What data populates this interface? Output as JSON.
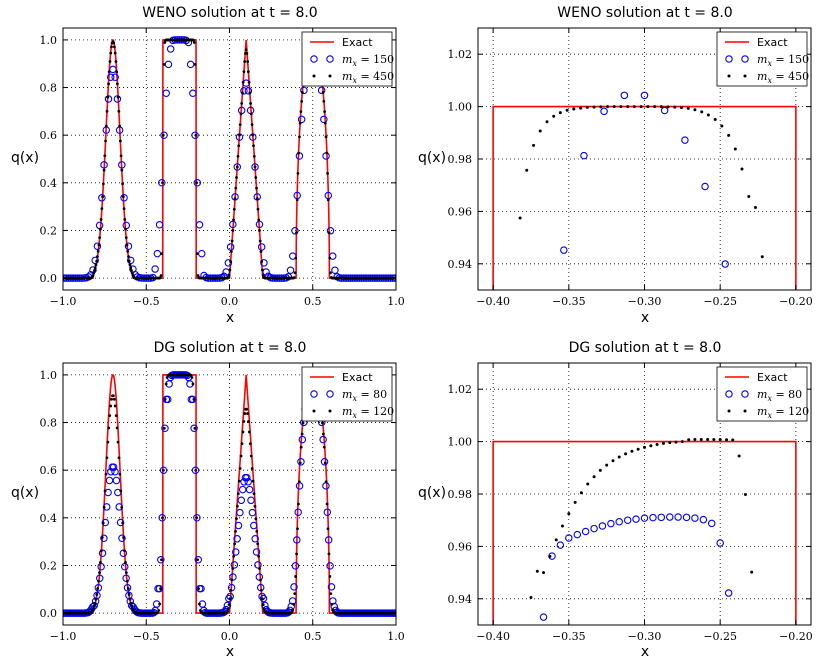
{
  "chart_data": [
    {
      "id": "weno-full",
      "type": "line",
      "title": "WENO solution at t = 8.0",
      "xlabel": "x",
      "ylabel": "q(x)",
      "xlim": [
        -1.0,
        1.0
      ],
      "ylim": [
        -0.05,
        1.05
      ],
      "xticks": [
        -1.0,
        -0.5,
        0.0,
        0.5,
        1.0
      ],
      "xtick_labels": [
        "−1.0",
        "−0.5",
        "0.0",
        "0.5",
        "1.0"
      ],
      "yticks": [
        0.0,
        0.2,
        0.4,
        0.6,
        0.8,
        1.0
      ],
      "ytick_labels": [
        "0.0",
        "0.2",
        "0.4",
        "0.6",
        "0.8",
        "1.0"
      ],
      "grid": true,
      "legend": [
        {
          "label": "Exact",
          "style": "line",
          "color": "#ff0000"
        },
        {
          "label": "m_x = 150",
          "prefix": "m",
          "sub": "x",
          "suffix": " = 150",
          "style": "circle",
          "color": "#0000ff"
        },
        {
          "label": "m_x = 450",
          "prefix": "m",
          "sub": "x",
          "suffix": " = 450",
          "style": "dot",
          "color": "#000000"
        }
      ],
      "legend_position": "top-right",
      "series": [
        {
          "name": "Exact",
          "kind": "exact_full"
        },
        {
          "name": "m_x = 150",
          "kind": "full_approx",
          "n": 150,
          "spread": 0.035,
          "peak_scale": 1.0,
          "shift": 0.0
        },
        {
          "name": "m_x = 450",
          "kind": "full_approx",
          "n": 450,
          "spread": 0.008,
          "peak_scale": 1.0,
          "shift": 0.0
        }
      ]
    },
    {
      "id": "weno-zoom",
      "type": "scatter",
      "title": "WENO solution at t = 8.0",
      "xlabel": "x",
      "ylabel": "q(x)",
      "xlim": [
        -0.41,
        -0.19
      ],
      "ylim": [
        0.93,
        1.03
      ],
      "xticks": [
        -0.4,
        -0.35,
        -0.3,
        -0.25,
        -0.2
      ],
      "xtick_labels": [
        "−0.40",
        "−0.35",
        "−0.30",
        "−0.25",
        "−0.20"
      ],
      "yticks": [
        0.94,
        0.96,
        0.98,
        1.0,
        1.02
      ],
      "ytick_labels": [
        "0.94",
        "0.96",
        "0.98",
        "1.00",
        "1.02"
      ],
      "grid": true,
      "legend": [
        {
          "label": "Exact",
          "style": "line",
          "color": "#ff0000"
        },
        {
          "label": "m_x = 150",
          "prefix": "m",
          "sub": "x",
          "suffix": " = 150",
          "style": "circle",
          "color": "#0000ff"
        },
        {
          "label": "m_x = 450",
          "prefix": "m",
          "sub": "x",
          "suffix": " = 450",
          "style": "dot",
          "color": "#000000"
        }
      ],
      "legend_position": "top-right",
      "series": [
        {
          "name": "Exact",
          "kind": "step",
          "x": [
            -0.4,
            -0.4,
            -0.2,
            -0.2
          ],
          "y": [
            0.92,
            1.0,
            1.0,
            0.92
          ]
        },
        {
          "name": "m_x = 150",
          "kind": "circle",
          "x": [
            -0.3533,
            -0.34,
            -0.3267,
            -0.3133,
            -0.3,
            -0.2867,
            -0.2733,
            -0.26,
            -0.2467
          ],
          "y": [
            0.9452,
            0.9813,
            0.9982,
            1.0043,
            1.0043,
            0.9985,
            0.9872,
            0.9695,
            0.9399
          ]
        },
        {
          "name": "m_x = 450",
          "kind": "dot",
          "x": [
            -0.3822,
            -0.3778,
            -0.3733,
            -0.3689,
            -0.3644,
            -0.36,
            -0.3556,
            -0.3511,
            -0.3467,
            -0.3422,
            -0.3378,
            -0.3333,
            -0.3289,
            -0.3244,
            -0.32,
            -0.3156,
            -0.3111,
            -0.3067,
            -0.3022,
            -0.2978,
            -0.2933,
            -0.2889,
            -0.2844,
            -0.28,
            -0.2756,
            -0.2711,
            -0.2667,
            -0.2622,
            -0.2578,
            -0.2533,
            -0.2489,
            -0.2444,
            -0.24,
            -0.2356,
            -0.2311,
            -0.2267,
            -0.2222
          ],
          "y": [
            0.9575,
            0.9757,
            0.9852,
            0.9907,
            0.9942,
            0.9963,
            0.9977,
            0.9986,
            0.9991,
            0.9994,
            0.9997,
            0.9998,
            0.9999,
            1.0,
            1.0,
            1.0,
            1.0,
            1.0,
            1.0,
            1.0,
            1.0,
            1.0,
            0.9999,
            0.9998,
            0.9996,
            0.9993,
            0.9988,
            0.998,
            0.9968,
            0.9951,
            0.9926,
            0.989,
            0.9838,
            0.9762,
            0.9657,
            0.9615,
            0.9427
          ]
        }
      ]
    },
    {
      "id": "dg-full",
      "type": "line",
      "title": "DG solution at t = 8.0",
      "xlabel": "x",
      "ylabel": "q(x)",
      "xlim": [
        -1.0,
        1.0
      ],
      "ylim": [
        -0.05,
        1.05
      ],
      "xticks": [
        -1.0,
        -0.5,
        0.0,
        0.5,
        1.0
      ],
      "xtick_labels": [
        "−1.0",
        "−0.5",
        "0.0",
        "0.5",
        "1.0"
      ],
      "yticks": [
        0.0,
        0.2,
        0.4,
        0.6,
        0.8,
        1.0
      ],
      "ytick_labels": [
        "0.0",
        "0.2",
        "0.4",
        "0.6",
        "0.8",
        "1.0"
      ],
      "grid": true,
      "legend": [
        {
          "label": "Exact",
          "style": "line",
          "color": "#ff0000"
        },
        {
          "label": "m_x = 80",
          "prefix": "m",
          "sub": "x",
          "suffix": " = 80",
          "style": "circle",
          "color": "#0000ff"
        },
        {
          "label": "m_x = 120",
          "prefix": "m",
          "sub": "x",
          "suffix": " = 120",
          "style": "dot",
          "color": "#000000"
        }
      ],
      "legend_position": "top-right",
      "series": [
        {
          "name": "Exact",
          "kind": "exact_full"
        },
        {
          "name": "m_x = 80",
          "kind": "full_approx",
          "n": 240,
          "spread": 0.03,
          "peak_scale": 0.68,
          "shift": 0.0
        },
        {
          "name": "m_x = 120",
          "kind": "full_approx",
          "n": 360,
          "spread": 0.018,
          "peak_scale": 0.95,
          "shift": 0.0
        }
      ]
    },
    {
      "id": "dg-zoom",
      "type": "scatter",
      "title": "DG solution at t = 8.0",
      "xlabel": "x",
      "ylabel": "q(x)",
      "xlim": [
        -0.41,
        -0.19
      ],
      "ylim": [
        0.93,
        1.03
      ],
      "xticks": [
        -0.4,
        -0.35,
        -0.3,
        -0.25,
        -0.2
      ],
      "xtick_labels": [
        "−0.40",
        "−0.35",
        "−0.30",
        "−0.25",
        "−0.20"
      ],
      "yticks": [
        0.94,
        0.96,
        0.98,
        1.0,
        1.02
      ],
      "ytick_labels": [
        "0.94",
        "0.96",
        "0.98",
        "1.00",
        "1.02"
      ],
      "grid": true,
      "legend": [
        {
          "label": "Exact",
          "style": "line",
          "color": "#ff0000"
        },
        {
          "label": "m_x = 80",
          "prefix": "m",
          "sub": "x",
          "suffix": " = 80",
          "style": "circle",
          "color": "#0000ff"
        },
        {
          "label": "m_x = 120",
          "prefix": "m",
          "sub": "x",
          "suffix": " = 120",
          "style": "dot",
          "color": "#000000"
        }
      ],
      "legend_position": "top-right",
      "series": [
        {
          "name": "Exact",
          "kind": "step",
          "x": [
            -0.4,
            -0.4,
            -0.2,
            -0.2
          ],
          "y": [
            0.92,
            1.0,
            1.0,
            0.92
          ]
        },
        {
          "name": "m_x = 80",
          "kind": "circle",
          "x": [
            -0.3667,
            -0.3611,
            -0.3556,
            -0.35,
            -0.3444,
            -0.3389,
            -0.3333,
            -0.3278,
            -0.3222,
            -0.3167,
            -0.3111,
            -0.3056,
            -0.3,
            -0.2944,
            -0.2889,
            -0.2833,
            -0.2778,
            -0.2722,
            -0.2667,
            -0.2611,
            -0.2556,
            -0.25,
            -0.2444
          ],
          "y": [
            0.933,
            0.9563,
            0.9605,
            0.9632,
            0.9645,
            0.9657,
            0.9668,
            0.9678,
            0.9687,
            0.9694,
            0.97,
            0.9704,
            0.9708,
            0.971,
            0.9711,
            0.9712,
            0.9712,
            0.9711,
            0.9708,
            0.9702,
            0.9688,
            0.9613,
            0.9422
          ]
        },
        {
          "name": "m_x = 120",
          "kind": "dot",
          "x": [
            -0.375,
            -0.3708,
            -0.3667,
            -0.3625,
            -0.3583,
            -0.3542,
            -0.35,
            -0.3458,
            -0.3417,
            -0.3375,
            -0.3333,
            -0.3292,
            -0.325,
            -0.3208,
            -0.3167,
            -0.3125,
            -0.3083,
            -0.3042,
            -0.3,
            -0.2958,
            -0.2917,
            -0.2875,
            -0.2833,
            -0.2792,
            -0.275,
            -0.2708,
            -0.2667,
            -0.2625,
            -0.2583,
            -0.2542,
            -0.25,
            -0.2458,
            -0.2417,
            -0.2375,
            -0.2333,
            -0.2292
          ],
          "y": [
            0.9405,
            0.9505,
            0.95,
            0.9562,
            0.9625,
            0.9678,
            0.9725,
            0.9768,
            0.9805,
            0.9838,
            0.9866,
            0.989,
            0.991,
            0.9927,
            0.9941,
            0.9953,
            0.9963,
            0.9971,
            0.9978,
            0.9984,
            0.9989,
            0.9993,
            0.9996,
            0.9998,
            1.0,
            1.0007,
            1.0008,
            1.0008,
            1.0008,
            1.0008,
            1.0008,
            1.0007,
            1.0006,
            0.9945,
            0.9798,
            0.9502
          ]
        }
      ]
    }
  ]
}
